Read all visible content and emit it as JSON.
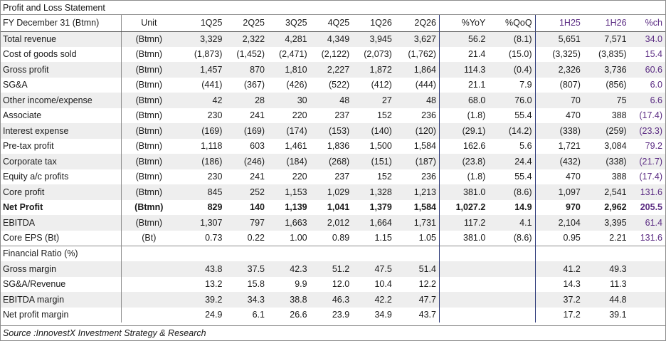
{
  "title": "Profit and Loss Statement",
  "header": [
    "FY December 31 (Btmn)",
    "Unit",
    "1Q25",
    "2Q25",
    "3Q25",
    "4Q25",
    "1Q26",
    "2Q26",
    "%YoY",
    "%QoQ",
    "1H25",
    "1H26",
    "%ch"
  ],
  "rows": [
    {
      "label": "Total revenue",
      "unit": "(Btmn)",
      "vals": [
        "3,329",
        "2,322",
        "4,281",
        "4,349",
        "3,945",
        "3,627",
        "56.2",
        "(8.1)",
        "5,651",
        "7,571",
        "34.0"
      ],
      "shade": true,
      "bold": false
    },
    {
      "label": "Cost of goods sold",
      "unit": "(Btmn)",
      "vals": [
        "(1,873)",
        "(1,452)",
        "(2,471)",
        "(2,122)",
        "(2,073)",
        "(1,762)",
        "21.4",
        "(15.0)",
        "(3,325)",
        "(3,835)",
        "15.4"
      ],
      "shade": false,
      "bold": false
    },
    {
      "label": "Gross profit",
      "unit": "(Btmn)",
      "vals": [
        "1,457",
        "870",
        "1,810",
        "2,227",
        "1,872",
        "1,864",
        "114.3",
        "(0.4)",
        "2,326",
        "3,736",
        "60.6"
      ],
      "shade": true,
      "bold": false
    },
    {
      "label": "SG&A",
      "unit": "(Btmn)",
      "vals": [
        "(441)",
        "(367)",
        "(426)",
        "(522)",
        "(412)",
        "(444)",
        "21.1",
        "7.9",
        "(807)",
        "(856)",
        "6.0"
      ],
      "shade": false,
      "bold": false
    },
    {
      "label": "Other income/expense",
      "unit": "(Btmn)",
      "vals": [
        "42",
        "28",
        "30",
        "48",
        "27",
        "48",
        "68.0",
        "76.0",
        "70",
        "75",
        "6.6"
      ],
      "shade": true,
      "bold": false
    },
    {
      "label": "Associate",
      "unit": "(Btmn)",
      "vals": [
        "230",
        "241",
        "220",
        "237",
        "152",
        "236",
        "(1.8)",
        "55.4",
        "470",
        "388",
        "(17.4)"
      ],
      "shade": false,
      "bold": false
    },
    {
      "label": "Interest expense",
      "unit": "(Btmn)",
      "vals": [
        "(169)",
        "(169)",
        "(174)",
        "(153)",
        "(140)",
        "(120)",
        "(29.1)",
        "(14.2)",
        "(338)",
        "(259)",
        "(23.3)"
      ],
      "shade": true,
      "bold": false
    },
    {
      "label": "Pre-tax profit",
      "unit": "(Btmn)",
      "vals": [
        "1,118",
        "603",
        "1,461",
        "1,836",
        "1,500",
        "1,584",
        "162.6",
        "5.6",
        "1,721",
        "3,084",
        "79.2"
      ],
      "shade": false,
      "bold": false
    },
    {
      "label": "Corporate tax",
      "unit": "(Btmn)",
      "vals": [
        "(186)",
        "(246)",
        "(184)",
        "(268)",
        "(151)",
        "(187)",
        "(23.8)",
        "24.4",
        "(432)",
        "(338)",
        "(21.7)"
      ],
      "shade": true,
      "bold": false
    },
    {
      "label": "Equity a/c profits",
      "unit": "(Btmn)",
      "vals": [
        "230",
        "241",
        "220",
        "237",
        "152",
        "236",
        "(1.8)",
        "55.4",
        "470",
        "388",
        "(17.4)"
      ],
      "shade": false,
      "bold": false
    },
    {
      "label": "Core profit",
      "unit": "(Btmn)",
      "vals": [
        "845",
        "252",
        "1,153",
        "1,029",
        "1,328",
        "1,213",
        "381.0",
        "(8.6)",
        "1,097",
        "2,541",
        "131.6"
      ],
      "shade": true,
      "bold": false
    },
    {
      "label": "Net Profit",
      "unit": "(Btmn)",
      "vals": [
        "829",
        "140",
        "1,139",
        "1,041",
        "1,379",
        "1,584",
        "1,027.2",
        "14.9",
        "970",
        "2,962",
        "205.5"
      ],
      "shade": false,
      "bold": true
    },
    {
      "label": "EBITDA",
      "unit": "(Btmn)",
      "vals": [
        "1,307",
        "797",
        "1,663",
        "2,012",
        "1,664",
        "1,731",
        "117.2",
        "4.1",
        "2,104",
        "3,395",
        "61.4"
      ],
      "shade": true,
      "bold": false
    },
    {
      "label": "Core EPS (Bt)",
      "unit": "(Bt)",
      "vals": [
        "0.73",
        "0.22",
        "1.00",
        "0.89",
        "1.15",
        "1.05",
        "381.0",
        "(8.6)",
        "0.95",
        "2.21",
        "131.6"
      ],
      "shade": false,
      "bold": false
    }
  ],
  "ratio_header": "Financial Ratio (%)",
  "ratios": [
    {
      "label": "Gross margin",
      "vals": [
        "43.8",
        "37.5",
        "42.3",
        "51.2",
        "47.5",
        "51.4",
        "",
        "",
        "41.2",
        "49.3",
        ""
      ],
      "shade": true
    },
    {
      "label": "SG&A/Revenue",
      "vals": [
        "13.2",
        "15.8",
        "9.9",
        "12.0",
        "10.4",
        "12.2",
        "",
        "",
        "14.3",
        "11.3",
        ""
      ],
      "shade": false
    },
    {
      "label": "EBITDA margin",
      "vals": [
        "39.2",
        "34.3",
        "38.8",
        "46.3",
        "42.2",
        "47.7",
        "",
        "",
        "37.2",
        "44.8",
        ""
      ],
      "shade": true
    },
    {
      "label": "Net profit margin",
      "vals": [
        "24.9",
        "6.1",
        "26.6",
        "23.9",
        "34.9",
        "43.7",
        "",
        "",
        "17.2",
        "39.1",
        ""
      ],
      "shade": false
    }
  ],
  "source": "Source :InnovestX Investment Strategy & Research",
  "colors": {
    "shade": "#eeeeee",
    "purple": "#5b2c83",
    "border": "#8c8c8c"
  }
}
